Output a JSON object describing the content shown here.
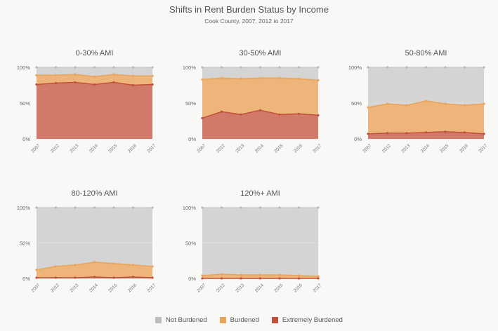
{
  "header": {
    "title": "Shifts in Rent Burden Status by Income",
    "subtitle": "Cook County, 2007, 2012 to 2017"
  },
  "legend": {
    "items": [
      {
        "label": "Not Burdened",
        "color": "#bdbdbd"
      },
      {
        "label": "Burdened",
        "color": "#e8a45a"
      },
      {
        "label": "Extremely Burdened",
        "color": "#c0503a"
      }
    ]
  },
  "colors": {
    "not_burdened_fill": "#d4d4d4",
    "burdened_fill": "#edb57a",
    "burdened_line": "#e8a45a",
    "extreme_fill": "#d27a6a",
    "extreme_line": "#c0503a",
    "gridline": "#dddddd"
  },
  "chart_data": [
    {
      "type": "area",
      "title": "0-30% AMI",
      "categories": [
        "2007",
        "2012",
        "2013",
        "2014",
        "2015",
        "2016",
        "2017"
      ],
      "ylim": [
        0,
        100
      ],
      "y_ticks": [
        "0%",
        "50%",
        "100%"
      ],
      "series": [
        {
          "name": "Burdened",
          "values": [
            89,
            89,
            90,
            87,
            90,
            88,
            88
          ]
        },
        {
          "name": "Extremely Burdened",
          "values": [
            76,
            78,
            79,
            76,
            79,
            75,
            76
          ]
        }
      ]
    },
    {
      "type": "area",
      "title": "30-50% AMI",
      "categories": [
        "2007",
        "2012",
        "2013",
        "2014",
        "2015",
        "2016",
        "2017"
      ],
      "ylim": [
        0,
        100
      ],
      "y_ticks": [
        "0%",
        "50%",
        "100%"
      ],
      "series": [
        {
          "name": "Burdened",
          "values": [
            83,
            85,
            84,
            85,
            85,
            84,
            82
          ]
        },
        {
          "name": "Extremely Burdened",
          "values": [
            29,
            38,
            34,
            40,
            34,
            35,
            33
          ]
        }
      ]
    },
    {
      "type": "area",
      "title": "50-80% AMI",
      "categories": [
        "2007",
        "2012",
        "2013",
        "2014",
        "2015",
        "2016",
        "2017"
      ],
      "ylim": [
        0,
        100
      ],
      "y_ticks": [
        "0%",
        "50%",
        "100%"
      ],
      "series": [
        {
          "name": "Burdened",
          "values": [
            44,
            49,
            47,
            53,
            49,
            47,
            49
          ]
        },
        {
          "name": "Extremely Burdened",
          "values": [
            7,
            8,
            8,
            9,
            10,
            9,
            7
          ]
        }
      ]
    },
    {
      "type": "area",
      "title": "80-120% AMI",
      "categories": [
        "2007",
        "2012",
        "2013",
        "2014",
        "2015",
        "2016",
        "2017"
      ],
      "ylim": [
        0,
        100
      ],
      "y_ticks": [
        "0%",
        "50%",
        "100%"
      ],
      "series": [
        {
          "name": "Burdened",
          "values": [
            12,
            17,
            19,
            23,
            21,
            19,
            17
          ]
        },
        {
          "name": "Extremely Burdened",
          "values": [
            1,
            1,
            1,
            2,
            1,
            2,
            1
          ]
        }
      ]
    },
    {
      "type": "area",
      "title": "120%+ AMI",
      "categories": [
        "2007",
        "2012",
        "2013",
        "2014",
        "2015",
        "2016",
        "2017"
      ],
      "ylim": [
        0,
        100
      ],
      "y_ticks": [
        "0%",
        "50%",
        "100%"
      ],
      "series": [
        {
          "name": "Burdened",
          "values": [
            4,
            6,
            5,
            5,
            5,
            4,
            3
          ]
        },
        {
          "name": "Extremely Burdened",
          "values": [
            0,
            0,
            0,
            0,
            0,
            0,
            0
          ]
        }
      ]
    }
  ]
}
